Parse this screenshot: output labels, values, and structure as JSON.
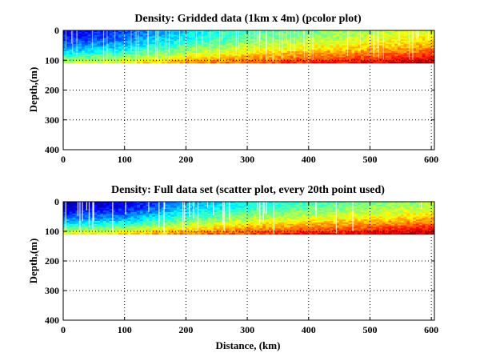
{
  "chart_data": [
    {
      "type": "heatmap",
      "title": "Density: Gridded data (1km x 4m) (pcolor plot)",
      "xlabel": "",
      "ylabel": "Depth,(m)",
      "xlim": [
        0,
        605
      ],
      "ylim": [
        400,
        0
      ],
      "y_reversed": true,
      "grid": true,
      "xticks": [
        0,
        100,
        200,
        300,
        400,
        500,
        600
      ],
      "yticks": [
        0,
        100,
        200,
        300,
        400
      ],
      "data_depth_range_m": [
        0,
        110
      ],
      "colormap": "jet",
      "density_trend": {
        "distance_km": [
          0,
          100,
          200,
          300,
          400,
          500,
          600
        ],
        "surface_level": [
          0.1,
          0.2,
          0.35,
          0.45,
          0.5,
          0.55,
          0.6
        ],
        "bottom_level": [
          0.6,
          0.65,
          0.75,
          0.82,
          0.88,
          0.92,
          0.97
        ]
      }
    },
    {
      "type": "scatter",
      "title": "Density: Full data set (scatter plot, every 20th point used)",
      "xlabel": "Distance, (km)",
      "ylabel": "Depth,(m)",
      "xlim": [
        0,
        605
      ],
      "ylim": [
        400,
        0
      ],
      "y_reversed": true,
      "grid": true,
      "xticks": [
        0,
        100,
        200,
        300,
        400,
        500,
        600
      ],
      "yticks": [
        0,
        100,
        200,
        300,
        400
      ],
      "data_depth_range_m": [
        0,
        110
      ],
      "colormap": "jet",
      "density_trend": {
        "distance_km": [
          0,
          100,
          200,
          300,
          400,
          500,
          600
        ],
        "surface_level": [
          0.05,
          0.1,
          0.3,
          0.4,
          0.45,
          0.5,
          0.55
        ],
        "bottom_level": [
          0.65,
          0.7,
          0.78,
          0.85,
          0.9,
          0.94,
          0.98
        ]
      }
    }
  ]
}
